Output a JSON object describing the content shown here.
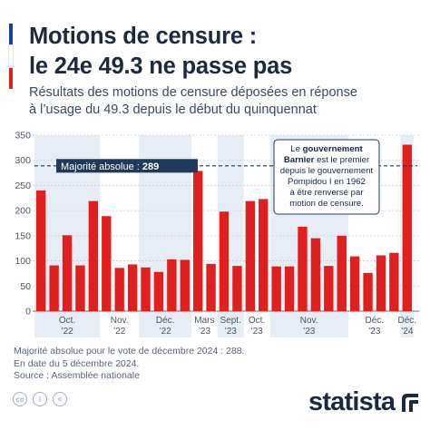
{
  "header": {
    "title_line1": "Motions de censure :",
    "title_line2": "le 24e 49.3 ne passe pas",
    "subtitle_line1": "Résultats des motions de censure déposées en réponse",
    "subtitle_line2": "à l’usage du 49.3 depuis le début du quinquennat"
  },
  "colors": {
    "bar": "#e0201e",
    "band": "#e7edf4",
    "reference_line": "#1f3a5c",
    "flag_blue": "#1d3f8f",
    "flag_white": "#ffffff",
    "flag_red": "#e0201e"
  },
  "chart_data": {
    "type": "bar",
    "values": [
      240,
      91,
      151,
      91,
      219,
      189,
      86,
      93,
      87,
      78,
      103,
      102,
      279,
      94,
      198,
      90,
      219,
      223,
      89,
      89,
      168,
      145,
      90,
      150,
      109,
      76,
      111,
      116,
      331
    ],
    "ylim": [
      0,
      350
    ],
    "yticks": [
      0,
      50,
      100,
      150,
      200,
      250,
      300,
      350
    ],
    "grid": true,
    "period_groups": [
      {
        "label_line1": "Oct.",
        "label_line2": "’22",
        "count": 5,
        "shaded": true
      },
      {
        "label_line1": "Nov.",
        "label_line2": "’22",
        "count": 3,
        "shaded": false
      },
      {
        "label_line1": "Déc.",
        "label_line2": "’22",
        "count": 4,
        "shaded": true
      },
      {
        "label_line1": "Mars",
        "label_line2": "’23",
        "count": 2,
        "shaded": false
      },
      {
        "label_line1": "Sept.",
        "label_line2": "’23",
        "count": 2,
        "shaded": true
      },
      {
        "label_line1": "Oct.",
        "label_line2": "’23",
        "count": 2,
        "shaded": false
      },
      {
        "label_line1": "Nov.",
        "label_line2": "’23",
        "count": 6,
        "shaded": true
      },
      {
        "label_line1": "Déc.",
        "label_line2": "’23",
        "count": 4,
        "shaded": false
      },
      {
        "label_line1": "Déc.",
        "label_line2": "’24",
        "count": 1,
        "shaded": true
      }
    ],
    "reference_line": {
      "value": 289,
      "label": "Majorité absolue : ",
      "value_label": "289"
    },
    "annotation": {
      "line1_pre": "Le ",
      "line1_bold": "gouvernement",
      "line2_bold": "Barnier",
      "line2_post": " est le premier",
      "line3": "depuis le gouvernement",
      "line4": "Pompidou I en 1962",
      "line5": "à être renversé par",
      "line6": "motion de censure."
    }
  },
  "footer": {
    "note_line1": "Majorité absolue pour le vote de décembre 2024 : 288.",
    "note_line2": "En date du 5 décembre 2024.",
    "source": "Source : Assemblée nationale",
    "license_icons": [
      "cc-icon",
      "by-icon",
      "nd-icon"
    ],
    "license_glyphs": [
      "cc",
      "i",
      "="
    ],
    "brand": "statista"
  }
}
